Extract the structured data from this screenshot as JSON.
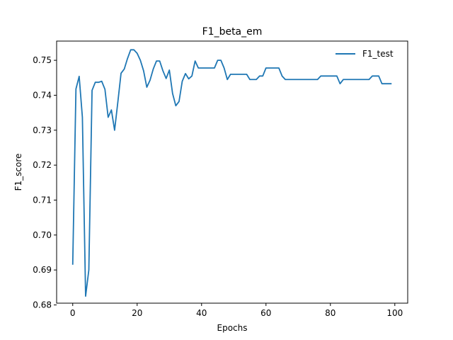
{
  "chart_data": {
    "type": "line",
    "title": "F1_beta_em",
    "xlabel": "Epochs",
    "ylabel": "F1_score",
    "xlim": [
      -5,
      104
    ],
    "ylim": [
      0.6805,
      0.7555
    ],
    "xticks": [
      0,
      20,
      40,
      60,
      80,
      100
    ],
    "yticks": [
      0.68,
      0.69,
      0.7,
      0.71,
      0.72,
      0.73,
      0.74,
      0.75
    ],
    "ytick_labels": [
      "0.68",
      "0.69",
      "0.70",
      "0.71",
      "0.72",
      "0.73",
      "0.74",
      "0.75"
    ],
    "xtick_labels": [
      "0",
      "20",
      "40",
      "60",
      "80",
      "100"
    ],
    "grid": false,
    "legend_position": "top-right",
    "series": [
      {
        "name": "F1_test",
        "color": "#1f77b4",
        "x": [
          0,
          1,
          2,
          3,
          4,
          5,
          6,
          7,
          8,
          9,
          10,
          11,
          12,
          13,
          14,
          15,
          16,
          17,
          18,
          19,
          20,
          21,
          22,
          23,
          24,
          25,
          26,
          27,
          28,
          29,
          30,
          31,
          32,
          33,
          34,
          35,
          36,
          37,
          38,
          39,
          40,
          41,
          42,
          43,
          44,
          45,
          46,
          47,
          48,
          49,
          50,
          51,
          52,
          53,
          54,
          55,
          56,
          57,
          58,
          59,
          60,
          61,
          62,
          63,
          64,
          65,
          66,
          67,
          68,
          69,
          70,
          71,
          72,
          73,
          74,
          75,
          76,
          77,
          78,
          79,
          80,
          81,
          82,
          83,
          84,
          85,
          86,
          87,
          88,
          89,
          90,
          91,
          92,
          93,
          94,
          95,
          96,
          97,
          98,
          99
        ],
        "values": [
          0.6915,
          0.7418,
          0.7454,
          0.7337,
          0.6825,
          0.69,
          0.7414,
          0.7437,
          0.7437,
          0.744,
          0.7417,
          0.7337,
          0.7358,
          0.73,
          0.738,
          0.7463,
          0.7475,
          0.7505,
          0.753,
          0.753,
          0.752,
          0.75,
          0.747,
          0.7423,
          0.7443,
          0.7475,
          0.7498,
          0.7498,
          0.747,
          0.7448,
          0.7472,
          0.7405,
          0.737,
          0.7382,
          0.744,
          0.7462,
          0.7447,
          0.7455,
          0.7498,
          0.7478,
          0.7478,
          0.7478,
          0.7478,
          0.7478,
          0.7478,
          0.75,
          0.75,
          0.7478,
          0.7445,
          0.746,
          0.746,
          0.746,
          0.746,
          0.746,
          0.746,
          0.7445,
          0.7445,
          0.7445,
          0.7455,
          0.7455,
          0.7478,
          0.7478,
          0.7478,
          0.7478,
          0.7478,
          0.7455,
          0.7445,
          0.7445,
          0.7445,
          0.7445,
          0.7445,
          0.7445,
          0.7445,
          0.7445,
          0.7445,
          0.7445,
          0.7445,
          0.7455,
          0.7455,
          0.7455,
          0.7455,
          0.7455,
          0.7455,
          0.7433,
          0.7445,
          0.7445,
          0.7445,
          0.7445,
          0.7445,
          0.7445,
          0.7445,
          0.7445,
          0.7445,
          0.7455,
          0.7455,
          0.7455,
          0.7433,
          0.7433,
          0.7433,
          0.7433
        ]
      }
    ]
  }
}
